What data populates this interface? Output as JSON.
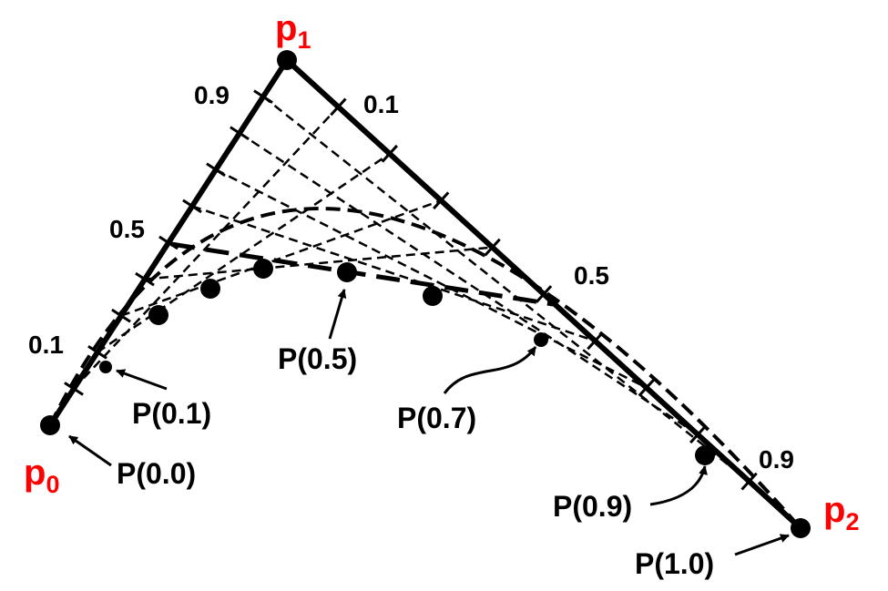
{
  "control_points": {
    "p0": {
      "letter": "p",
      "sub": "0"
    },
    "p1": {
      "letter": "p",
      "sub": "1"
    },
    "p2": {
      "letter": "p",
      "sub": "2"
    }
  },
  "left_edge_labels": {
    "t01": "0.1",
    "t05": "0.5",
    "t09": "0.9"
  },
  "right_edge_labels": {
    "t01": "0.1",
    "t05": "0.5",
    "t09": "0.9"
  },
  "curve_point_labels": {
    "p00": "P(0.0)",
    "p01": "P(0.1)",
    "p05": "P(0.5)",
    "p07": "P(0.7)",
    "p09": "P(0.9)",
    "p10": "P(1.0)"
  },
  "colors": {
    "label_red": "#ff0000",
    "ink": "#000000"
  }
}
